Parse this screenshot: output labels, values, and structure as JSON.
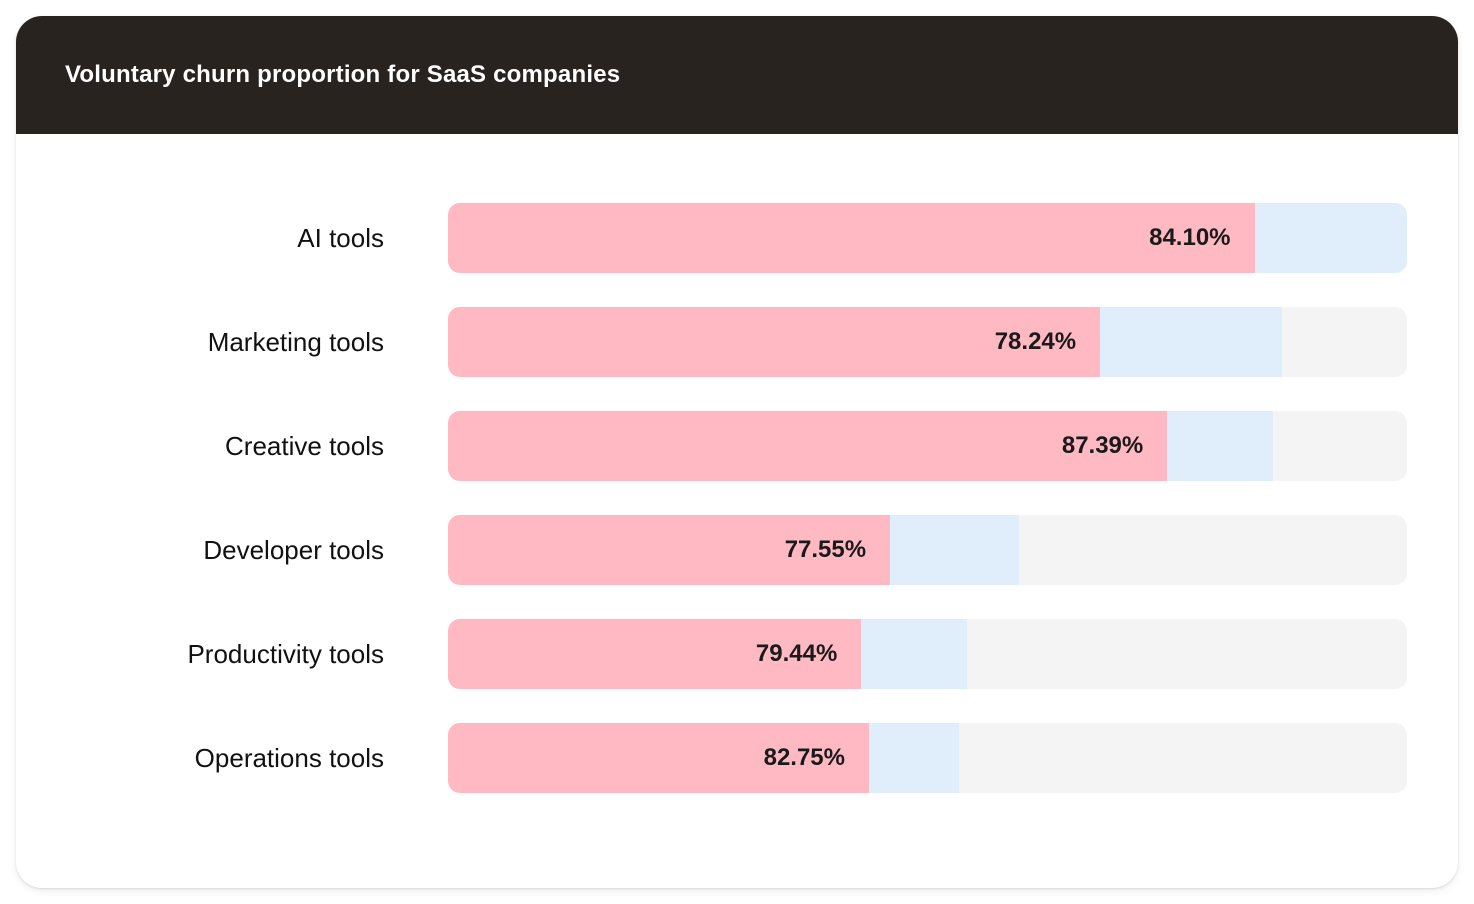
{
  "header": {
    "title": "Voluntary churn proportion for SaaS companies"
  },
  "colors": {
    "header_bg": "#292320",
    "card_bg": "#ffffff",
    "title_text": "#ffffff",
    "label_text": "#111111",
    "value_text": "#1a1a1a",
    "bar_voluntary": "#ffb9c3",
    "bar_involuntary": "#dfeefa",
    "bar_track": "#f4f4f4"
  },
  "chart_data": {
    "type": "bar",
    "orientation": "horizontal",
    "title": "Voluntary churn proportion for SaaS companies",
    "categories": [
      "AI tools",
      "Marketing tools",
      "Creative tools",
      "Developer tools",
      "Productivity tools",
      "Operations tools"
    ],
    "values": [
      84.1,
      78.24,
      87.39,
      77.55,
      79.44,
      82.75
    ],
    "value_labels": [
      "84.10%",
      "78.24%",
      "87.39%",
      "77.55%",
      "79.44%",
      "82.75%"
    ],
    "xlim": [
      0,
      100
    ],
    "grid": false,
    "legend": "none",
    "axis_labels_visible": false,
    "value_label_position": "inside-end-of-voluntary-segment",
    "rows": [
      {
        "category": "AI tools",
        "value": 84.1,
        "value_label": "84.10%",
        "voluntary_track_pct": 84.1,
        "involuntary_track_pct": 15.9
      },
      {
        "category": "Marketing tools",
        "value": 78.24,
        "value_label": "78.24%",
        "voluntary_track_pct": 68.0,
        "involuntary_track_pct": 19.0
      },
      {
        "category": "Creative tools",
        "value": 87.39,
        "value_label": "87.39%",
        "voluntary_track_pct": 75.0,
        "involuntary_track_pct": 11.0
      },
      {
        "category": "Developer tools",
        "value": 77.55,
        "value_label": "77.55%",
        "voluntary_track_pct": 46.1,
        "involuntary_track_pct": 13.4
      },
      {
        "category": "Productivity tools",
        "value": 79.44,
        "value_label": "79.44%",
        "voluntary_track_pct": 43.1,
        "involuntary_track_pct": 11.0
      },
      {
        "category": "Operations tools",
        "value": 82.75,
        "value_label": "82.75%",
        "voluntary_track_pct": 43.9,
        "involuntary_track_pct": 9.4
      }
    ]
  }
}
